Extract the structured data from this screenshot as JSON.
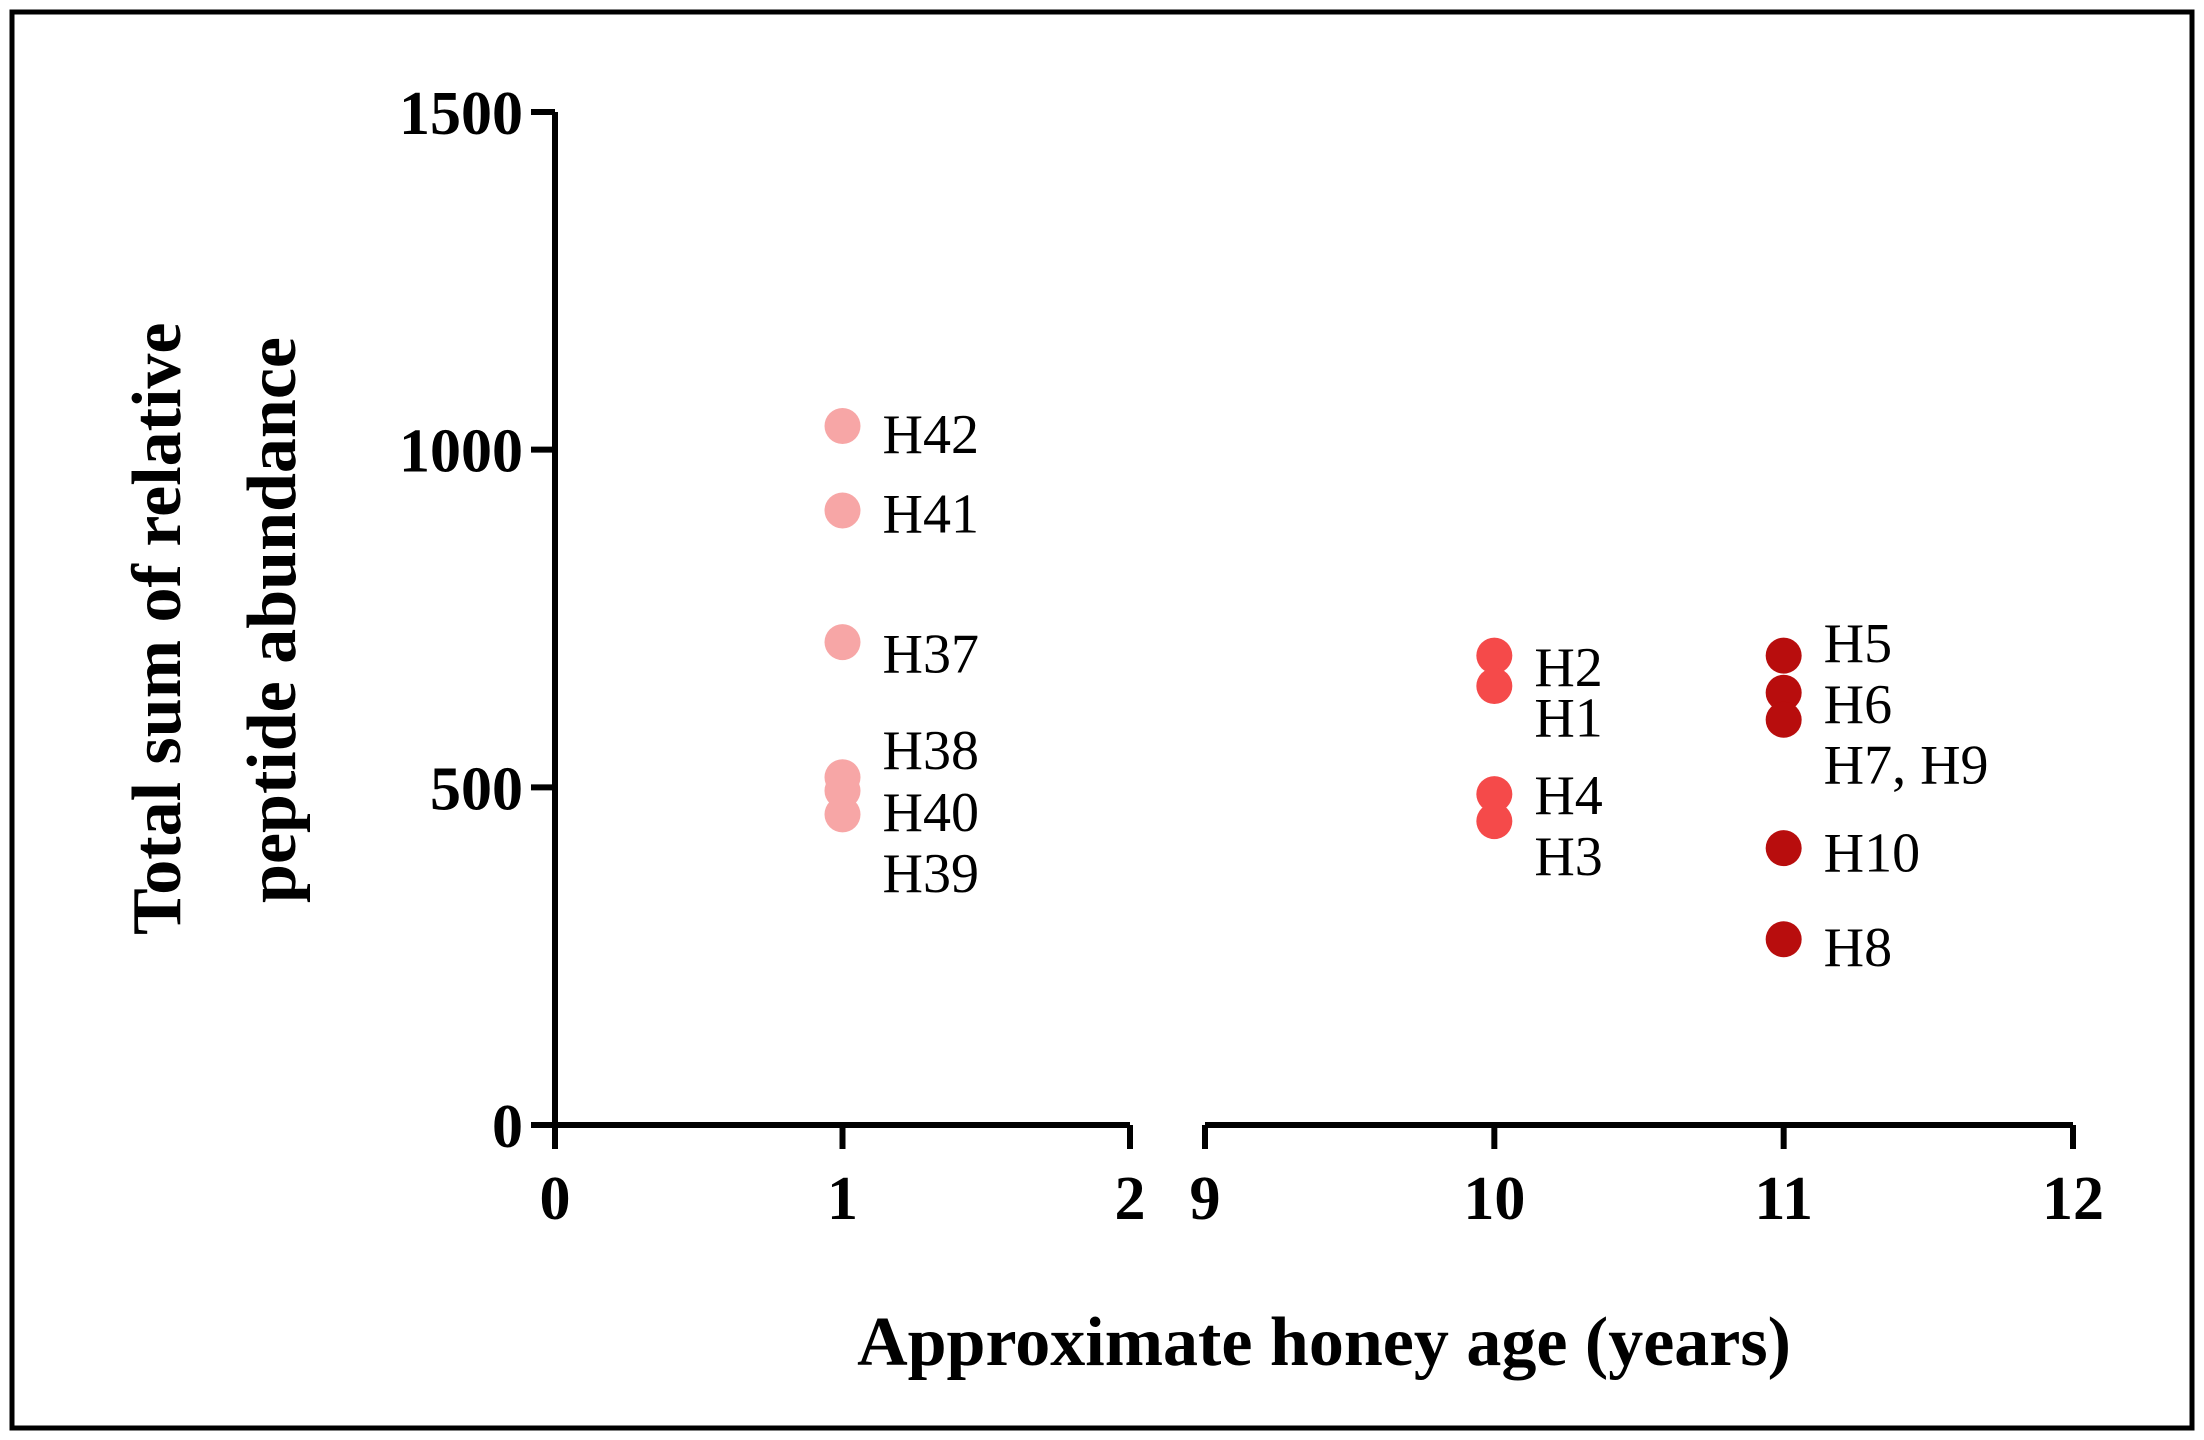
{
  "chart_data": {
    "type": "scatter",
    "title": "",
    "xlabel": "Approximate honey age (years)",
    "ylabel_lines": [
      "Total sum of relative",
      "peptide abundance"
    ],
    "x_axis_break": {
      "segments": [
        [
          0,
          2
        ],
        [
          9,
          12
        ]
      ]
    },
    "x_ticks": [
      0,
      1,
      2,
      9,
      10,
      11,
      12
    ],
    "y_ticks": [
      0,
      500,
      1000,
      1500
    ],
    "ylim": [
      0,
      1500
    ],
    "grid": false,
    "legend": "none",
    "series": [
      {
        "color": "#f7a6a6",
        "points": [
          {
            "x": 1,
            "y": 1035
          },
          {
            "x": 1,
            "y": 910
          },
          {
            "x": 1,
            "y": 715
          },
          {
            "x": 1,
            "y": 515
          },
          {
            "x": 1,
            "y": 495
          },
          {
            "x": 1,
            "y": 460
          }
        ]
      },
      {
        "color": "#f54a4a",
        "points": [
          {
            "x": 10,
            "y": 695
          },
          {
            "x": 10,
            "y": 650
          },
          {
            "x": 10,
            "y": 490
          },
          {
            "x": 10,
            "y": 450
          }
        ]
      },
      {
        "color": "#b80d0d",
        "points": [
          {
            "x": 11,
            "y": 695
          },
          {
            "x": 11,
            "y": 640
          },
          {
            "x": 11,
            "y": 600
          },
          {
            "x": 11,
            "y": 410
          },
          {
            "x": 11,
            "y": 275
          }
        ]
      }
    ],
    "annotations": [
      {
        "text": "H42",
        "x": 1,
        "y": 1025
      },
      {
        "text": "H41",
        "x": 1,
        "y": 907
      },
      {
        "text": "H37",
        "x": 1,
        "y": 700
      },
      {
        "text": "H38",
        "x": 1,
        "y": 557
      },
      {
        "text": "H40",
        "x": 1,
        "y": 465
      },
      {
        "text": "H39",
        "x": 1,
        "y": 375
      },
      {
        "text": "H2",
        "x": 10,
        "y": 680
      },
      {
        "text": "H1",
        "x": 10,
        "y": 605
      },
      {
        "text": "H4",
        "x": 10,
        "y": 490
      },
      {
        "text": "H3",
        "x": 10,
        "y": 400
      },
      {
        "text": "H5",
        "x": 11,
        "y": 715
      },
      {
        "text": "H6",
        "x": 11,
        "y": 625
      },
      {
        "text": "H7, H9",
        "x": 11,
        "y": 535
      },
      {
        "text": "H10",
        "x": 11,
        "y": 405
      },
      {
        "text": "H8",
        "x": 11,
        "y": 265
      }
    ]
  }
}
